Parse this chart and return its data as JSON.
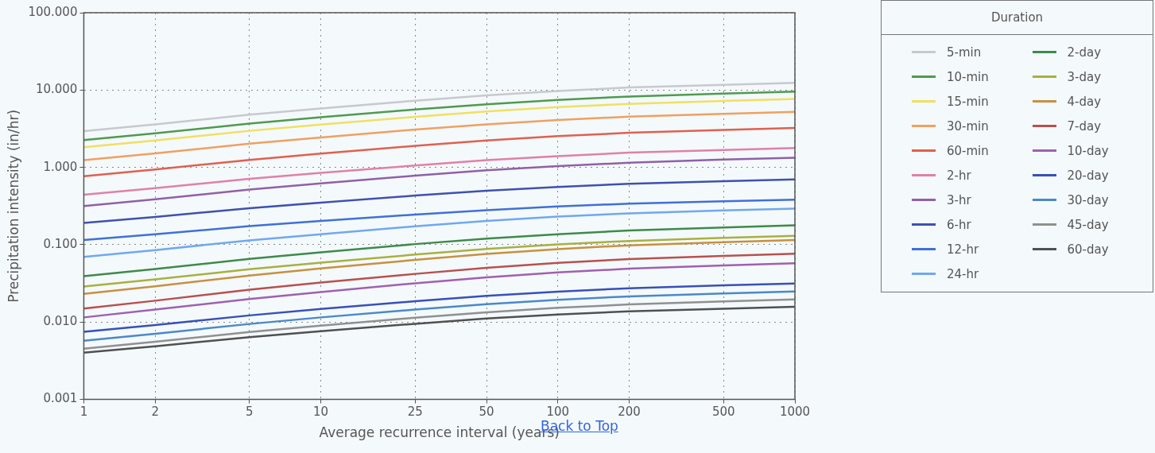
{
  "chart_data": {
    "type": "line",
    "xlabel": "Average recurrence interval (years)",
    "ylabel": "Precipitation intensity (in/hr)",
    "legend_title": "Duration",
    "x": [
      1,
      2,
      5,
      10,
      25,
      50,
      100,
      200,
      500,
      1000
    ],
    "series": [
      {
        "name": "5-min",
        "color": "#c8c8d0",
        "values": [
          2.94,
          3.6,
          4.8,
          5.79,
          7.29,
          8.55,
          9.72,
          10.8,
          11.7,
          12.4
        ]
      },
      {
        "name": "10-min",
        "color": "#4f9a4f",
        "values": [
          2.26,
          2.76,
          3.69,
          4.45,
          5.6,
          6.56,
          7.46,
          8.26,
          8.99,
          9.53
        ]
      },
      {
        "name": "15-min",
        "color": "#f0e060",
        "values": [
          1.82,
          2.23,
          2.97,
          3.58,
          4.51,
          5.28,
          6.01,
          6.64,
          7.24,
          7.67
        ]
      },
      {
        "name": "30-min",
        "color": "#f0a060",
        "values": [
          1.24,
          1.52,
          2.03,
          2.44,
          3.08,
          3.6,
          4.1,
          4.53,
          4.94,
          5.24
        ]
      },
      {
        "name": "60-min",
        "color": "#e06050",
        "values": [
          0.767,
          0.939,
          1.25,
          1.51,
          1.9,
          2.23,
          2.54,
          2.8,
          3.05,
          3.24
        ]
      },
      {
        "name": "2-hr",
        "color": "#e080a8",
        "values": [
          0.443,
          0.538,
          0.71,
          0.851,
          1.06,
          1.24,
          1.4,
          1.55,
          1.68,
          1.78
        ]
      },
      {
        "name": "3-hr",
        "color": "#9060a8",
        "values": [
          0.316,
          0.387,
          0.516,
          0.622,
          0.783,
          0.917,
          1.04,
          1.15,
          1.26,
          1.33
        ]
      },
      {
        "name": "6-hr",
        "color": "#4050b0",
        "values": [
          0.191,
          0.229,
          0.297,
          0.351,
          0.432,
          0.498,
          0.56,
          0.613,
          0.663,
          0.698
        ]
      },
      {
        "name": "12-hr",
        "color": "#4070d8",
        "values": [
          0.115,
          0.137,
          0.174,
          0.203,
          0.246,
          0.28,
          0.312,
          0.34,
          0.365,
          0.383
        ]
      },
      {
        "name": "24-hr",
        "color": "#70a8f0",
        "values": [
          0.0698,
          0.0854,
          0.114,
          0.137,
          0.173,
          0.203,
          0.231,
          0.255,
          0.278,
          0.294
        ]
      },
      {
        "name": "2-day",
        "color": "#3e8a4a",
        "values": [
          0.0393,
          0.0485,
          0.0656,
          0.0798,
          0.102,
          0.12,
          0.137,
          0.153,
          0.167,
          0.178
        ]
      },
      {
        "name": "3-day",
        "color": "#a8b040",
        "values": [
          0.0288,
          0.0356,
          0.0482,
          0.0586,
          0.0746,
          0.0881,
          0.101,
          0.112,
          0.123,
          0.13
        ]
      },
      {
        "name": "4-day",
        "color": "#c89040",
        "values": [
          0.0232,
          0.029,
          0.04,
          0.0493,
          0.0637,
          0.076,
          0.0879,
          0.0984,
          0.108,
          0.115
        ]
      },
      {
        "name": "7-day",
        "color": "#b85050",
        "values": [
          0.015,
          0.0189,
          0.0262,
          0.0324,
          0.042,
          0.0502,
          0.0582,
          0.0652,
          0.0719,
          0.0767
        ]
      },
      {
        "name": "10-day",
        "color": "#a060b0",
        "values": [
          0.0115,
          0.0145,
          0.0199,
          0.0245,
          0.0318,
          0.0379,
          0.0438,
          0.049,
          0.054,
          0.0575
        ]
      },
      {
        "name": "20-day",
        "color": "#3850b8",
        "values": [
          0.0075,
          0.00917,
          0.0122,
          0.0148,
          0.0186,
          0.0218,
          0.0248,
          0.0274,
          0.0299,
          0.0316
        ]
      },
      {
        "name": "30-day",
        "color": "#4c88c8",
        "values": [
          0.00575,
          0.00706,
          0.00946,
          0.0115,
          0.0145,
          0.017,
          0.0194,
          0.0215,
          0.0235,
          0.0249
        ]
      },
      {
        "name": "45-day",
        "color": "#909090",
        "values": [
          0.00453,
          0.00556,
          0.00745,
          0.00902,
          0.0114,
          0.0134,
          0.0153,
          0.0169,
          0.0185,
          0.0196
        ]
      },
      {
        "name": "60-day",
        "color": "#505050",
        "values": [
          0.00402,
          0.00486,
          0.0064,
          0.00764,
          0.00951,
          0.0111,
          0.0125,
          0.0138,
          0.0149,
          0.0158
        ]
      }
    ],
    "log": "xy",
    "xlim": [
      1,
      1000
    ],
    "xticks": [
      1,
      2,
      5,
      10,
      25,
      50,
      100,
      200,
      500,
      1000
    ],
    "ylim": [
      0.001,
      100
    ],
    "yticks": [
      {
        "value": 0.001,
        "label": "0.001"
      },
      {
        "value": 0.01,
        "label": "0.010"
      },
      {
        "value": 0.1,
        "label": "0.100"
      },
      {
        "value": 1,
        "label": "1.000"
      },
      {
        "value": 10,
        "label": "10.000"
      },
      {
        "value": 100,
        "label": "100.000"
      }
    ],
    "grid": true,
    "legend": "right",
    "marker": "none",
    "line_style": "solid",
    "annotations": [
      "Back to Top"
    ]
  }
}
